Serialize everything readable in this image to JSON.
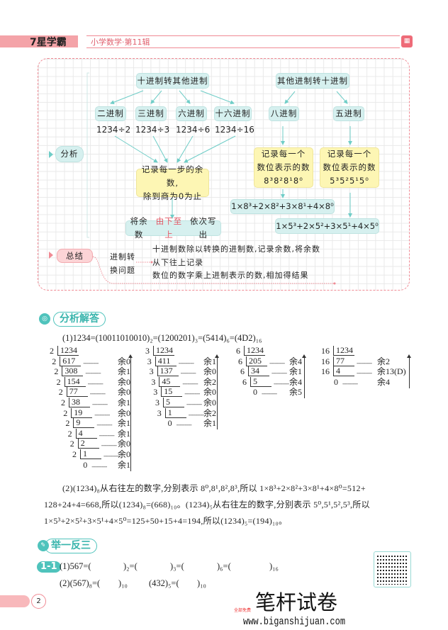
{
  "header": {
    "brand": "7星学霸",
    "series": "小学数学·第11辑",
    "icon": "book-icon"
  },
  "analysis": {
    "label": "分析",
    "left_title": "十进制转其他进制",
    "right_title": "其他进制转十进制",
    "bases_left": [
      {
        "name": "二进制",
        "calc": "1234÷2"
      },
      {
        "name": "三进制",
        "calc": "1234÷3"
      },
      {
        "name": "六进制",
        "calc": "1234÷6"
      },
      {
        "name": "十六进制",
        "calc": "1234÷16"
      }
    ],
    "record_remainder": [
      "记录每一步的余数,",
      "除到商为0为止"
    ],
    "write_out": {
      "pre": "将余数",
      "highlight": "由下至上",
      "post": "依次写出"
    },
    "bases_right": [
      {
        "name": "八进制",
        "lines": [
          "记录每一个",
          "数位表示的数",
          "8³8²8¹8⁰"
        ],
        "formula": "1×8³+2×8²+3×8¹+4×8⁰"
      },
      {
        "name": "五进制",
        "lines": [
          "记录每一个",
          "数位表示的数",
          "5³5²5¹5⁰"
        ],
        "formula": "1×5³+2×5²+3×5¹+4×5⁰"
      }
    ]
  },
  "summary": {
    "label": "总结",
    "topic": [
      "进制转",
      "换问题"
    ],
    "points": [
      "十进制数除以转换的进制数,记录余数,将余数",
      "从下往上记录",
      "数位的数字乘上进制表示的数,相加得结果"
    ]
  },
  "solution": {
    "title": "分析解答",
    "line1": "(1)1234=(10011010010)₂=(1200201)₃=(5414)₆=(4D2)₁₆",
    "divisions": [
      {
        "divisor": "2",
        "dividend": "1234",
        "steps": [
          [
            "617",
            "余0"
          ],
          [
            "308",
            "余1"
          ],
          [
            "154",
            "余0"
          ],
          [
            "77",
            "余0"
          ],
          [
            "38",
            "余1"
          ],
          [
            "19",
            "余0"
          ],
          [
            "9",
            "余1"
          ],
          [
            "4",
            "余1"
          ],
          [
            "2",
            "余0"
          ],
          [
            "1",
            "余0"
          ]
        ],
        "final": [
          "0",
          "余1"
        ]
      },
      {
        "divisor": "3",
        "dividend": "1234",
        "steps": [
          [
            "411",
            "余1"
          ],
          [
            "137",
            "余0"
          ],
          [
            "45",
            "余2"
          ],
          [
            "15",
            "余0"
          ],
          [
            "5",
            "余0"
          ],
          [
            "1",
            "余2"
          ]
        ],
        "final": [
          "0",
          "余1"
        ]
      },
      {
        "divisor": "6",
        "dividend": "1234",
        "steps": [
          [
            "205",
            "余4"
          ],
          [
            "34",
            "余1"
          ],
          [
            "5",
            "余4"
          ]
        ],
        "final": [
          "0",
          "余5"
        ]
      },
      {
        "divisor": "16",
        "dividend": "1234",
        "steps": [
          [
            "77",
            "余2"
          ],
          [
            "4",
            "余13(D)"
          ]
        ],
        "final": [
          "0",
          "余4"
        ]
      }
    ],
    "dashes": "---------",
    "part2": [
      "(2)(1234)₈从右往左的数字,分别表示 8⁰,8¹,8²,8³,所以 1×8³+2×8²+3×8¹+4×8⁰=512+",
      "128+24+4=668,所以(1234)₈=(668)₁₀。(1234)₅从右往左的数字,分别表示 5⁰,5¹,5²,5³,所以",
      "1×5³+2×5²+3×5¹+4×5⁰=125+50+15+4=194,所以(1234)₅=(194)₁₀。"
    ]
  },
  "practice": {
    "title": "举一反三",
    "badge": "1-1",
    "q1": [
      "(1)567=(",
      ")₂=(",
      ")₃=(",
      ")₆=(",
      ")₁₆"
    ],
    "q2": [
      "(2)(567)₈=(",
      ")₁₀",
      "(432)₅=(",
      ")₁₀"
    ]
  },
  "footer": {
    "page": "2",
    "watermark": "笔杆试卷",
    "watermark_small": "全部免费",
    "url": "www.biganshijuan.com"
  },
  "colors": {
    "accent": "#4fc3bc",
    "pink": "#f08a94",
    "yellow": "#fdf6b4",
    "teal_box": "#d6f0ef"
  }
}
